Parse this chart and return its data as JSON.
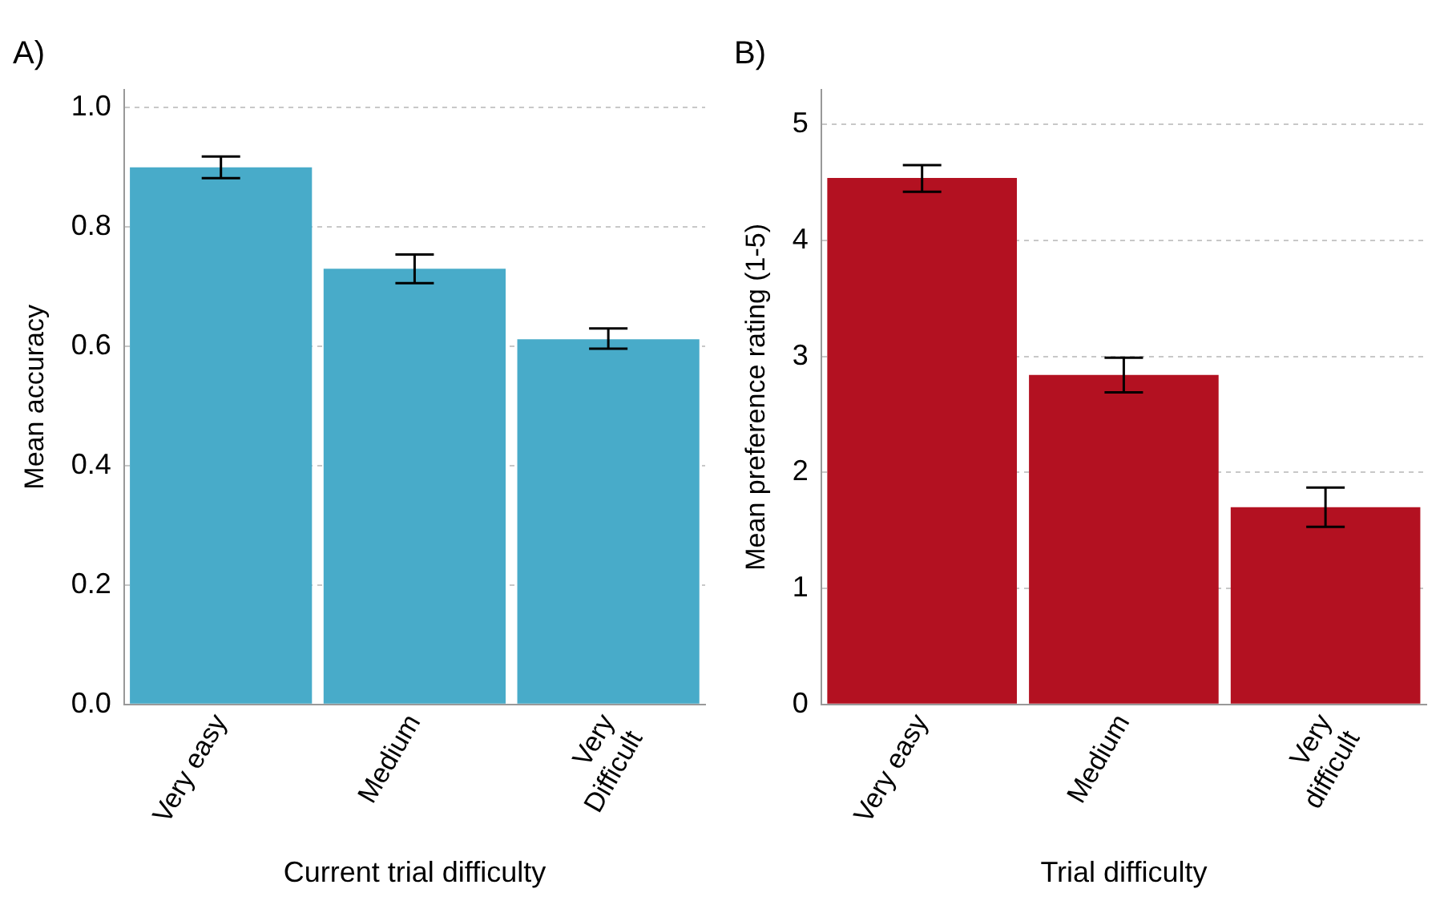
{
  "chart_data": [
    {
      "type": "bar",
      "title": "A)",
      "xlabel": "Current trial difficulty",
      "ylabel": "Mean accuracy",
      "categories": [
        "Very easy",
        "Medium",
        "Very\nDifficult"
      ],
      "values": [
        0.9,
        0.73,
        0.612
      ],
      "color": "#48abc9",
      "errors": [
        [
          0.882,
          0.918
        ],
        [
          0.706,
          0.754
        ],
        [
          0.596,
          0.63
        ]
      ],
      "ylim": [
        0,
        1.03
      ],
      "yticks": [
        {
          "value": 0,
          "label": "0.0"
        },
        0.2,
        0.4,
        0.6,
        0.8,
        {
          "value": 1,
          "label": "1.0"
        }
      ],
      "grid": "y"
    },
    {
      "type": "bar",
      "title": "B)",
      "xlabel": "Trial difficulty",
      "ylabel": "Mean preference rating (1-5)",
      "categories": [
        "Very easy",
        "Medium",
        "Very\ndifficult"
      ],
      "values": [
        4.54,
        2.84,
        1.7
      ],
      "color": "#b31121",
      "errors": [
        [
          4.42,
          4.65
        ],
        [
          2.69,
          2.99
        ],
        [
          1.53,
          1.87
        ]
      ],
      "ylim": [
        0,
        5.3
      ],
      "yticks": [
        0,
        1,
        2,
        3,
        4,
        5
      ],
      "grid": "y"
    }
  ]
}
